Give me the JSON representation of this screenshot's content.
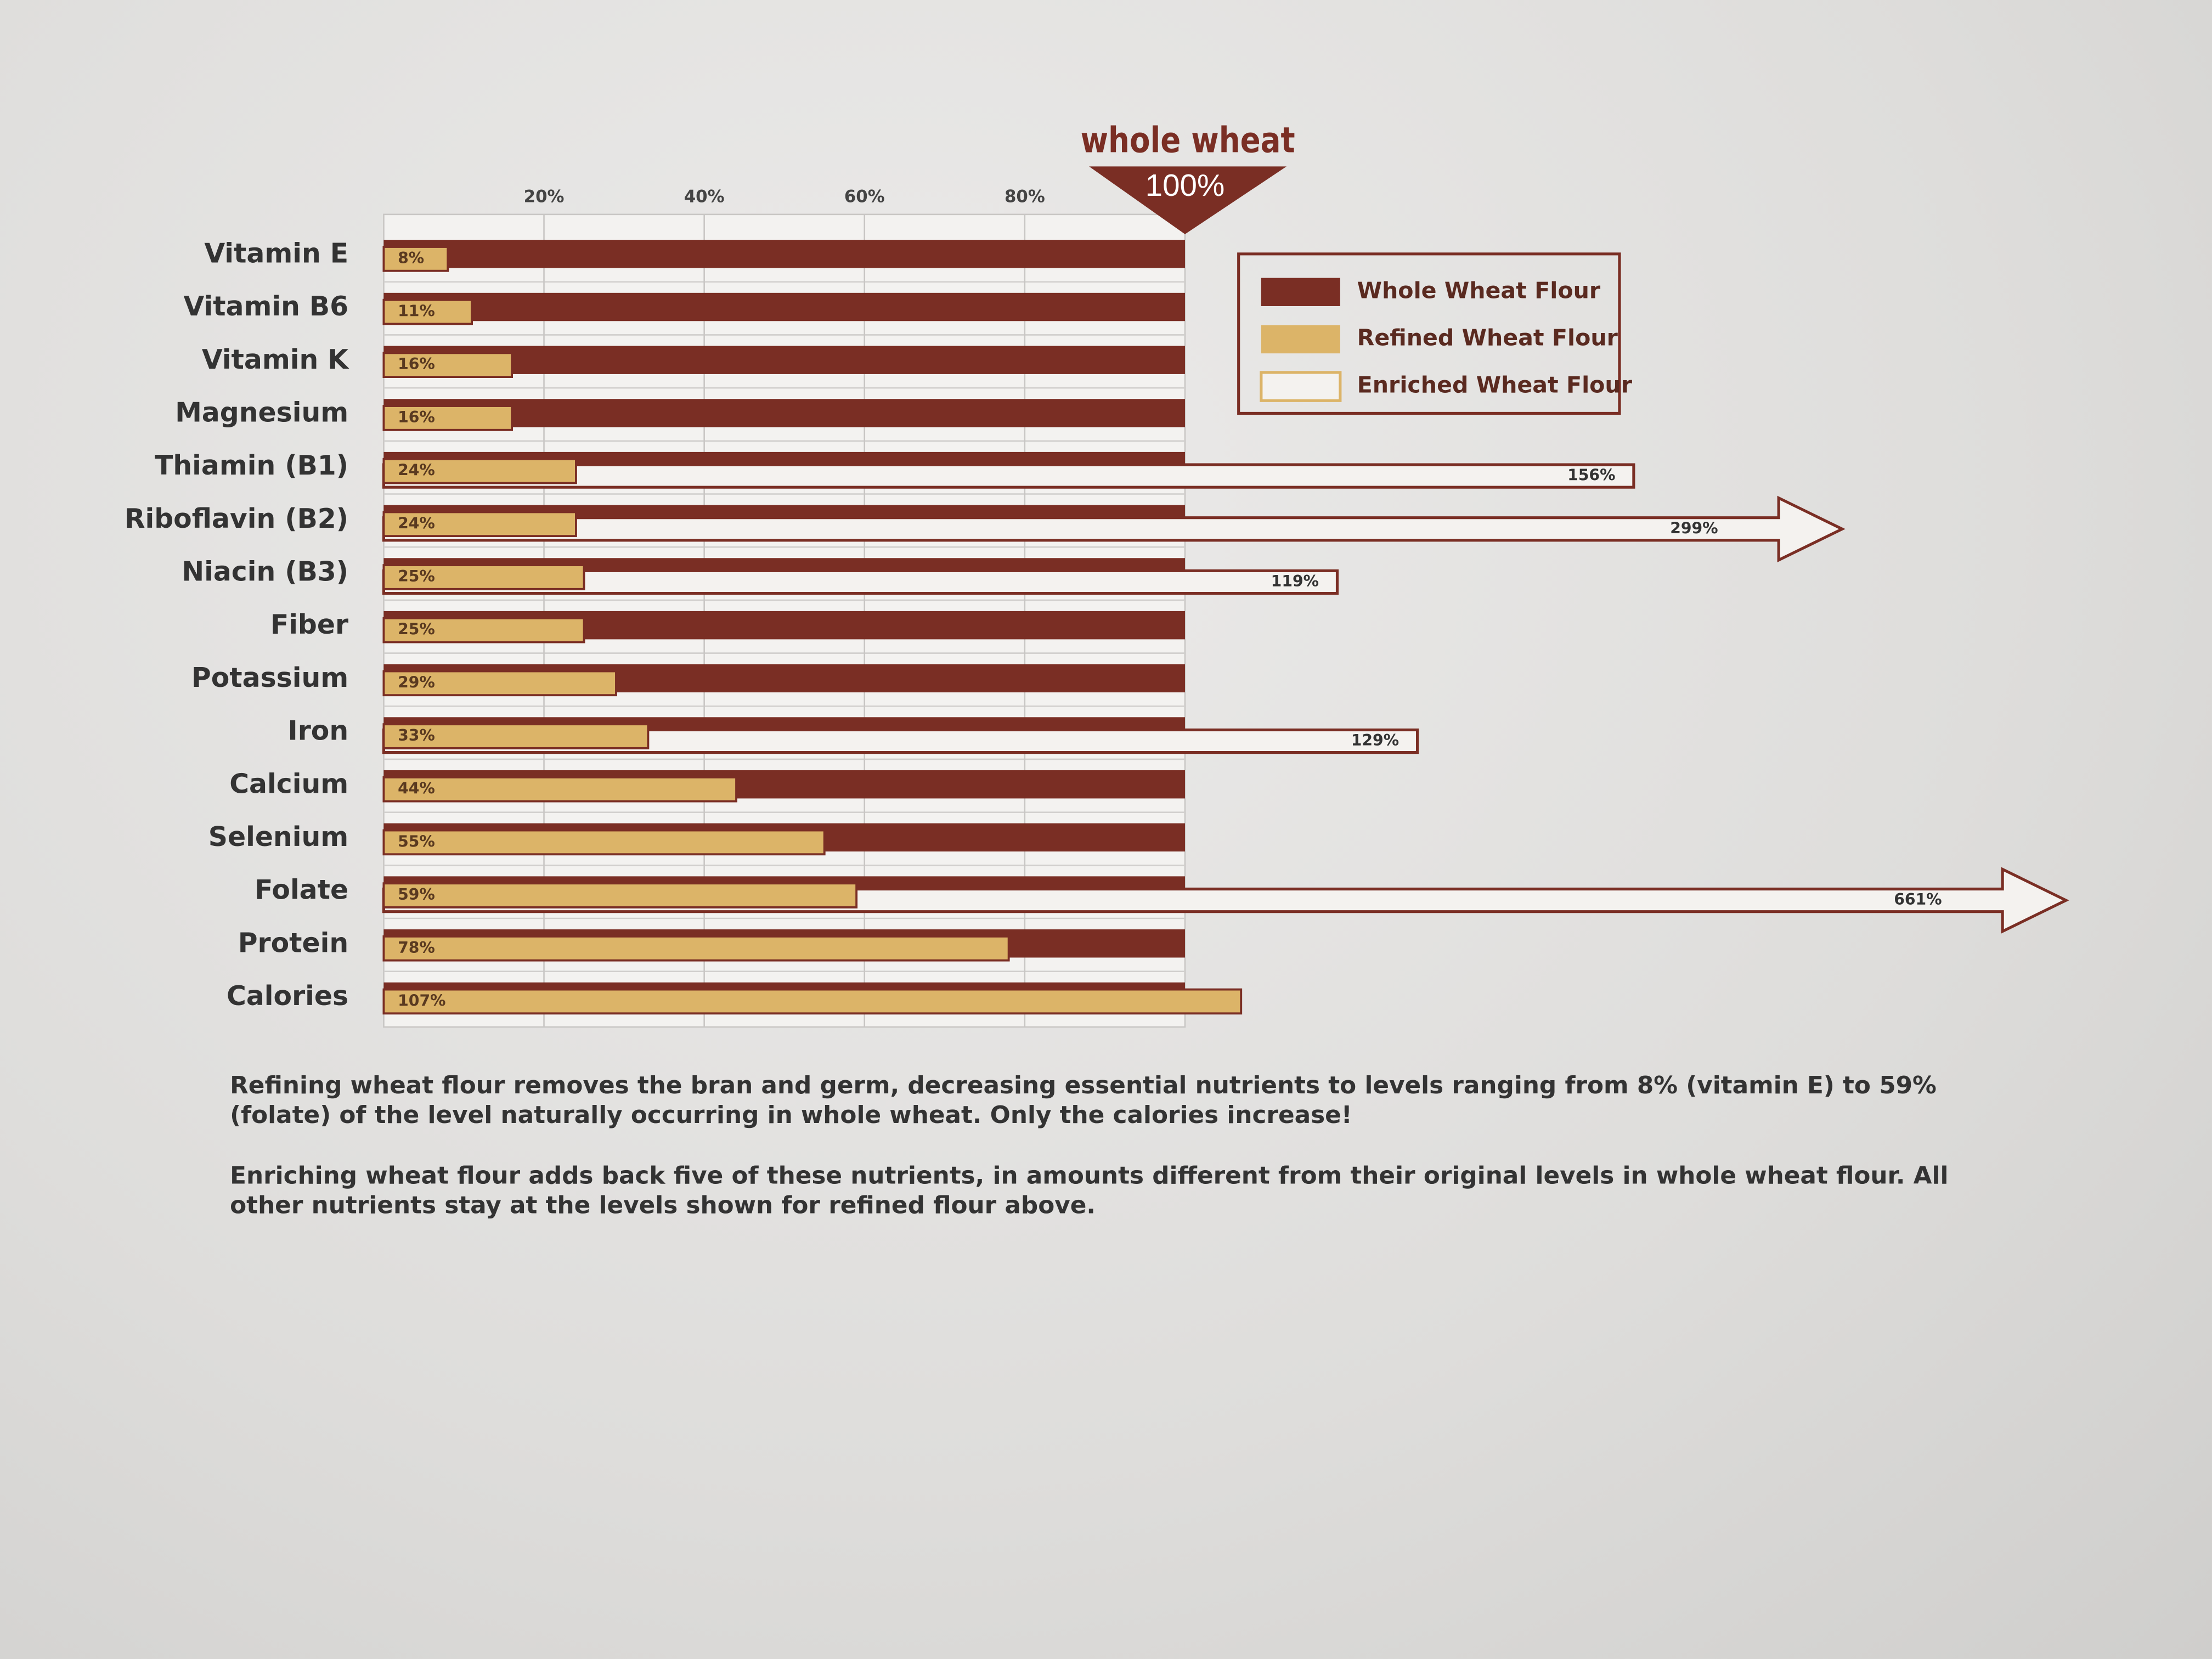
{
  "chart_data": {
    "type": "bar",
    "orientation": "horizontal",
    "categories": [
      "Vitamin E",
      "Vitamin B6",
      "Vitamin K",
      "Magnesium",
      "Thiamin (B1)",
      "Riboflavin (B2)",
      "Niacin (B3)",
      "Fiber",
      "Potassium",
      "Iron",
      "Calcium",
      "Selenium",
      "Folate",
      "Protein",
      "Calories"
    ],
    "series": [
      {
        "name": "Whole Wheat Flour",
        "color": "#7a2e24",
        "values": [
          100,
          100,
          100,
          100,
          100,
          100,
          100,
          100,
          100,
          100,
          100,
          100,
          100,
          100,
          100
        ]
      },
      {
        "name": "Refined Wheat Flour",
        "color": "#dcb468",
        "values": [
          8,
          11,
          16,
          16,
          24,
          24,
          25,
          25,
          29,
          33,
          44,
          55,
          59,
          78,
          107
        ],
        "value_labels": [
          "8%",
          "11%",
          "16%",
          "16%",
          "24%",
          "24%",
          "25%",
          "25%",
          "29%",
          "33%",
          "44%",
          "55%",
          "59%",
          "78%",
          "107%"
        ]
      },
      {
        "name": "Enriched Wheat Flour",
        "color": "#f4f2ef",
        "values": [
          null,
          null,
          null,
          null,
          156,
          299,
          119,
          null,
          null,
          129,
          null,
          null,
          661,
          null,
          null
        ],
        "value_labels": [
          null,
          null,
          null,
          null,
          "156%",
          "299%",
          "119%",
          null,
          null,
          "129%",
          null,
          null,
          "661%",
          null,
          null
        ]
      }
    ],
    "xlim": [
      0,
      100
    ],
    "xticks": [
      {
        "value": 20,
        "label": "20%"
      },
      {
        "value": 40,
        "label": "40%"
      },
      {
        "value": 60,
        "label": "60%"
      },
      {
        "value": 80,
        "label": "80%"
      }
    ],
    "grid": true,
    "reference": {
      "label": "whole wheat",
      "value": 100,
      "value_label": "100%"
    },
    "notes": [
      "Refining wheat flour removes the bran and germ, decreasing essential nutrients to levels ranging from 8% (vitamin E) to 59% (folate) of the level naturally occurring in whole wheat. Only the calories increase!",
      "Enriching wheat flour adds back five of these nutrients, in amounts different from their original levels in whole wheat flour. All other nutrients stay at the levels shown for refined flour above."
    ]
  }
}
